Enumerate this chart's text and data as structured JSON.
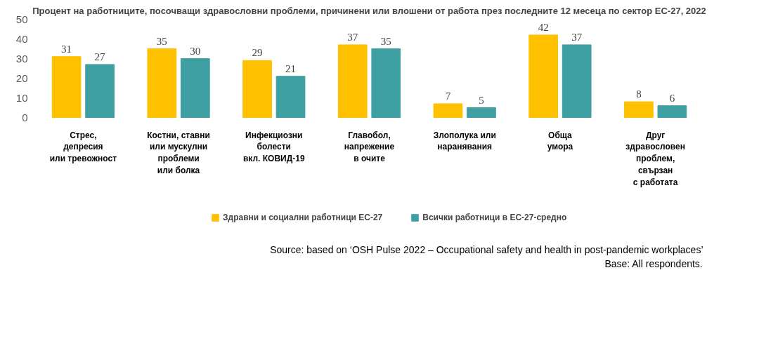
{
  "chart_data": {
    "type": "bar",
    "title": "Процент на работниците, посочващи здравословни проблеми, причинени или влошени от работа през последните 12 месеца по сектор ЕС-27, 2022",
    "categories": [
      "Стрес,\nдепресия\nили тревожност",
      "Костни, ставни\nили мускулни\nпроблеми\nили болка",
      "Инфекциозни\nболести\nвкл. КОВИД-19",
      "Главобол,\nнапрежение\nв очите",
      "Злополука или\nнаранявания",
      "Обща\nумора",
      "Друг\nздравословен\nпроблем,\nсвързан\nс работата"
    ],
    "series": [
      {
        "name": "Здравни и социални работници ЕС-27",
        "color": "#ffc000",
        "values": [
          31,
          35,
          29,
          37,
          7,
          42,
          8
        ]
      },
      {
        "name": "Всички работници в ЕС-27-средно",
        "color": "#3fa0a3",
        "values": [
          27,
          30,
          21,
          35,
          5,
          37,
          6
        ]
      }
    ],
    "ylim": [
      0,
      50
    ],
    "yticks": [
      0,
      10,
      20,
      30,
      40,
      50
    ],
    "data_labels": true,
    "grid": false,
    "legend": "bottom",
    "annotations": [
      "Source: based on ‘OSH Pulse 2022 – Occupational safety and health in post-pandemic workplaces’",
      "Base: All respondents."
    ]
  }
}
